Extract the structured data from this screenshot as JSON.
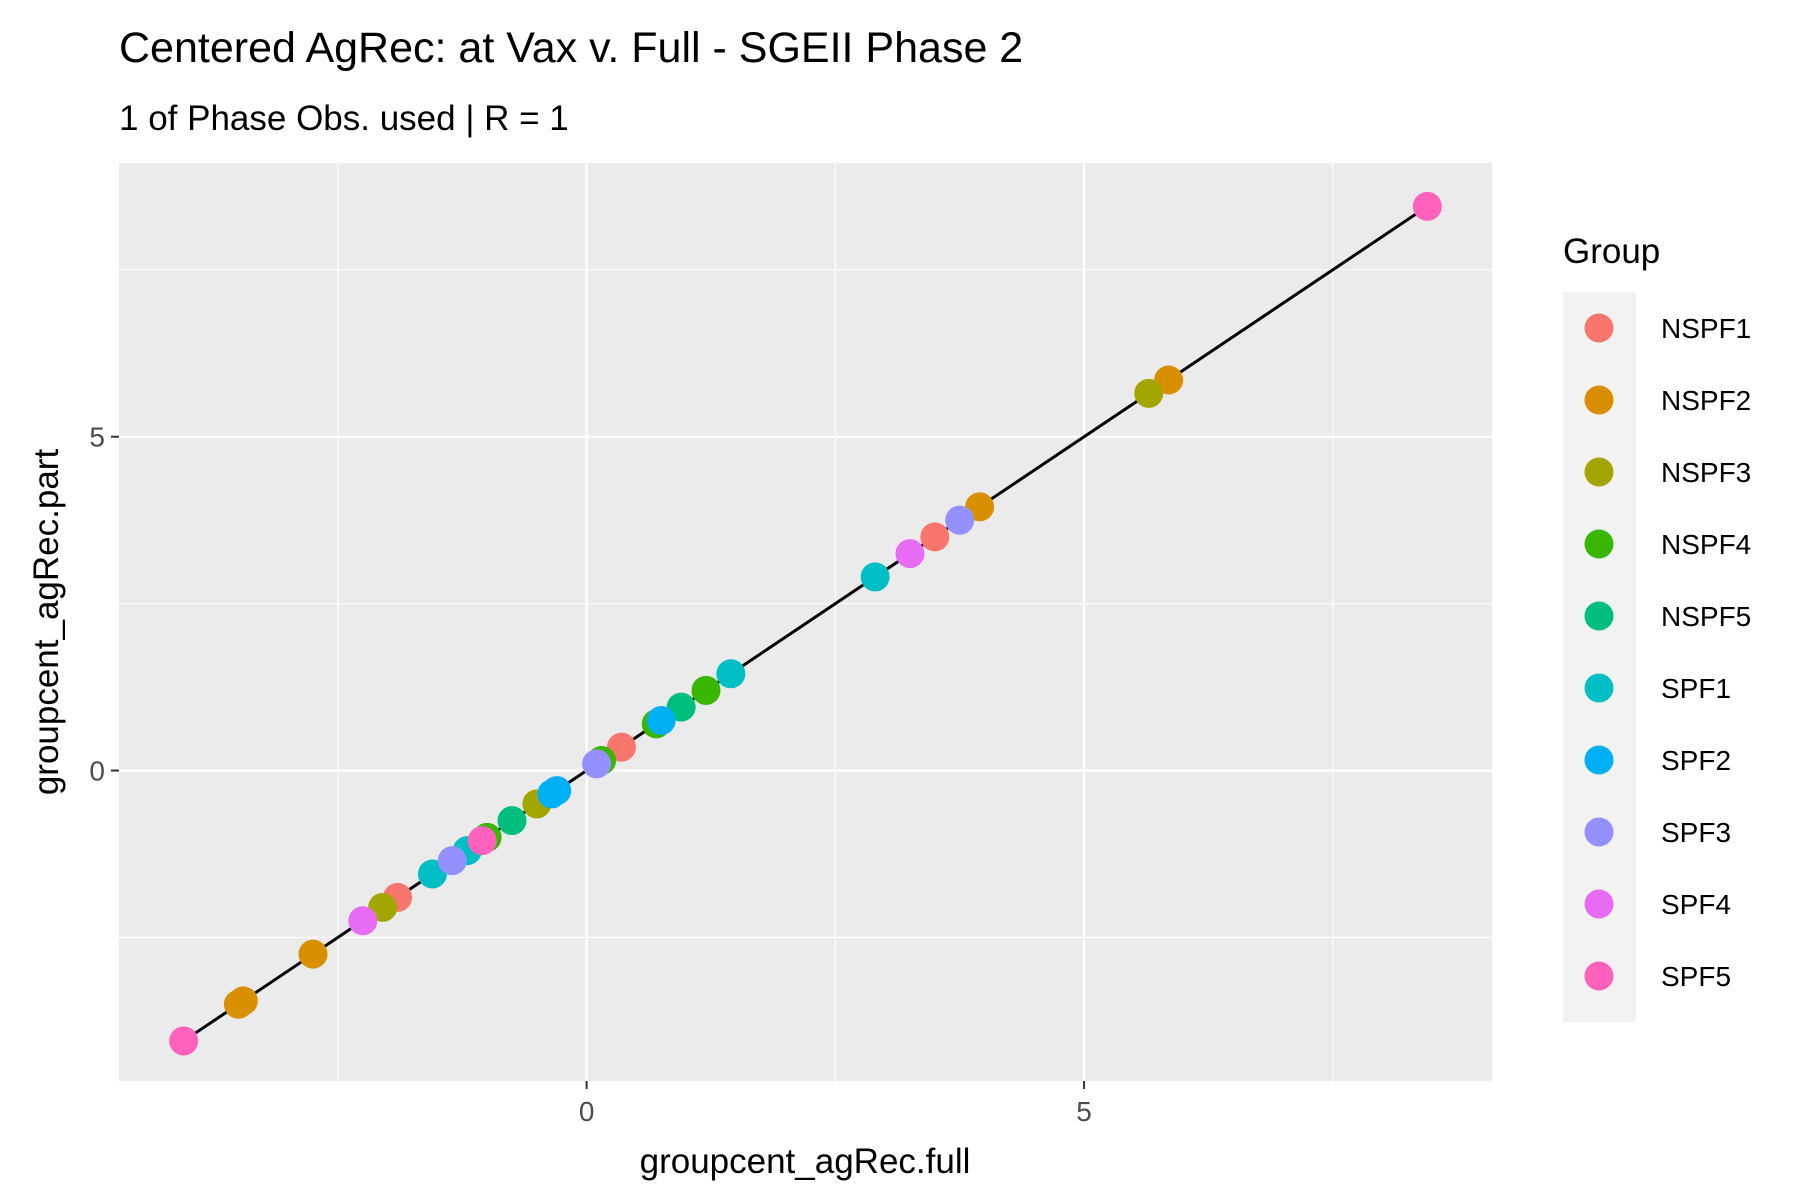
{
  "chart_data": {
    "type": "scatter",
    "title": "Centered AgRec: at Vax v. Full - SGEII Phase 2",
    "subtitle": "1 of Phase Obs. used | R = 1",
    "xlabel": "groupcent_agRec.full",
    "ylabel": "groupcent_agRec.part",
    "xlim": [
      -4.7,
      9.1
    ],
    "ylim": [
      -4.65,
      9.1
    ],
    "x_ticks": [
      0,
      5
    ],
    "y_ticks": [
      0,
      5
    ],
    "x_tick_labels": [
      "0",
      "5"
    ],
    "y_tick_labels": [
      "0",
      "5"
    ],
    "grid": true,
    "reference_line": {
      "x": [
        -4.05,
        8.45
      ],
      "y": [
        -4.05,
        8.45
      ],
      "color": "#000000"
    },
    "legend": {
      "title": "Group",
      "placement": "right",
      "entries": [
        {
          "name": "NSPF1",
          "color": "#F8766D"
        },
        {
          "name": "NSPF2",
          "color": "#D89000"
        },
        {
          "name": "NSPF3",
          "color": "#A3A500"
        },
        {
          "name": "NSPF4",
          "color": "#39B600"
        },
        {
          "name": "NSPF5",
          "color": "#00BF7D"
        },
        {
          "name": "SPF1",
          "color": "#00BFC4"
        },
        {
          "name": "SPF2",
          "color": "#00B0F6"
        },
        {
          "name": "SPF3",
          "color": "#9590FF"
        },
        {
          "name": "SPF4",
          "color": "#E76BF3"
        },
        {
          "name": "SPF5",
          "color": "#FF62BC"
        }
      ]
    },
    "series": [
      {
        "name": "NSPF1",
        "points": [
          [
            -1.9,
            -1.9
          ],
          [
            0.35,
            0.35
          ],
          [
            3.5,
            3.5
          ]
        ]
      },
      {
        "name": "NSPF2",
        "points": [
          [
            -3.5,
            -3.5
          ],
          [
            -3.45,
            -3.45
          ],
          [
            -2.75,
            -2.75
          ],
          [
            3.95,
            3.95
          ],
          [
            5.85,
            5.85
          ]
        ]
      },
      {
        "name": "NSPF3",
        "points": [
          [
            -2.05,
            -2.05
          ],
          [
            -0.5,
            -0.5
          ],
          [
            5.65,
            5.65
          ]
        ]
      },
      {
        "name": "NSPF4",
        "points": [
          [
            -1.0,
            -1.0
          ],
          [
            0.15,
            0.15
          ],
          [
            0.7,
            0.7
          ],
          [
            1.2,
            1.2
          ]
        ]
      },
      {
        "name": "NSPF5",
        "points": [
          [
            -0.75,
            -0.75
          ],
          [
            0.95,
            0.95
          ]
        ]
      },
      {
        "name": "SPF1",
        "points": [
          [
            -1.55,
            -1.55
          ],
          [
            -1.2,
            -1.2
          ],
          [
            1.45,
            1.45
          ],
          [
            2.9,
            2.9
          ]
        ]
      },
      {
        "name": "SPF2",
        "points": [
          [
            -0.35,
            -0.35
          ],
          [
            -0.3,
            -0.3
          ],
          [
            0.75,
            0.75
          ]
        ]
      },
      {
        "name": "SPF3",
        "points": [
          [
            -1.35,
            -1.35
          ],
          [
            0.1,
            0.1
          ],
          [
            3.75,
            3.75
          ]
        ]
      },
      {
        "name": "SPF4",
        "points": [
          [
            -2.25,
            -2.25
          ],
          [
            3.25,
            3.25
          ]
        ]
      },
      {
        "name": "SPF5",
        "points": [
          [
            -4.05,
            -4.05
          ],
          [
            -1.05,
            -1.05
          ],
          [
            8.45,
            8.45
          ]
        ]
      }
    ]
  }
}
